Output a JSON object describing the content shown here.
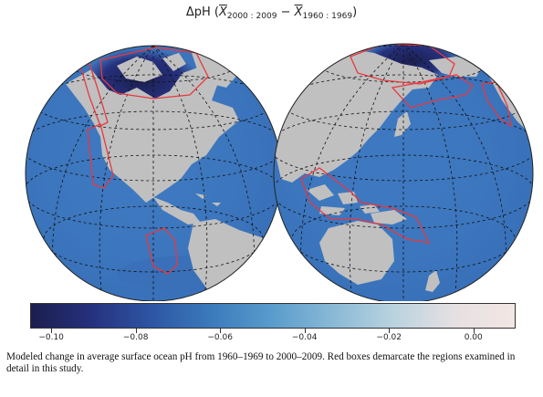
{
  "figure": {
    "title": {
      "prefix": "ΔpH (",
      "a_var": "X",
      "a_sub": "2000 : 2009",
      "minus": " − ",
      "b_var": "X",
      "b_sub": "1960 : 1969",
      "suffix": ")"
    },
    "caption": "Modeled change in average surface ocean pH from 1960–1969 to 2000–2009. Red boxes demarcate the regions examined in detail in this study."
  },
  "colorbar": {
    "range": [
      -0.105,
      0.01
    ],
    "ticks": [
      {
        "value": -0.1,
        "label": "−0.10"
      },
      {
        "value": -0.08,
        "label": "−0.08"
      },
      {
        "value": -0.06,
        "label": "−0.06"
      },
      {
        "value": -0.04,
        "label": "−0.04"
      },
      {
        "value": -0.02,
        "label": "−0.02"
      },
      {
        "value": 0.0,
        "label": "0.00"
      }
    ],
    "colors": [
      "#1b1e4e",
      "#26317e",
      "#2d56a3",
      "#3c7bbc",
      "#5a9ccc",
      "#8ab9d6",
      "#b9d3df",
      "#e6e0e2",
      "#f3e6e4"
    ]
  },
  "map_colors": {
    "ocean": "#3d78c0",
    "land": "#c0c0c0",
    "polar": "#232a6e",
    "graticule": "#111111",
    "region_box": "#e8383f"
  }
}
